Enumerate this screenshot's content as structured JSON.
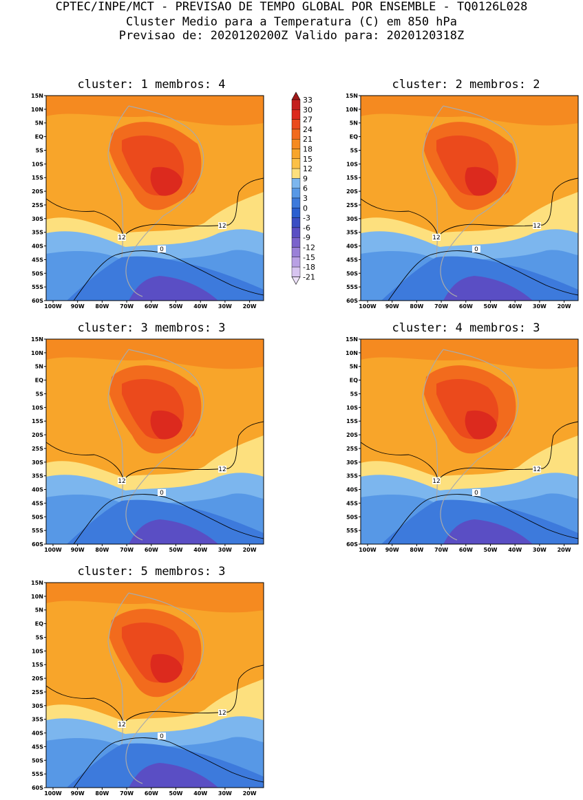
{
  "header": {
    "line1": "CPTEC/INPE/MCT - PREVISAO DE TEMPO GLOBAL POR ENSEMBLE - TQ0126L028",
    "line2": "Cluster Medio para a Temperatura (C) em 850 hPa",
    "line3": "Previsao de: 2020120200Z   Valido para: 2020120318Z"
  },
  "panels": [
    {
      "title": "cluster: 1   membros: 4",
      "contour_labels": [
        "12",
        "12",
        "0"
      ]
    },
    {
      "title": "cluster: 2   membros: 2",
      "contour_labels": [
        "12",
        "12",
        "0"
      ]
    },
    {
      "title": "cluster: 3   membros: 3",
      "contour_labels": [
        "12",
        "12",
        "0"
      ]
    },
    {
      "title": "cluster: 4   membros: 3",
      "contour_labels": [
        "12",
        "12",
        "0"
      ]
    },
    {
      "title": "cluster: 5   membros: 3",
      "contour_labels": [
        "12",
        "12",
        "0"
      ]
    }
  ],
  "lat_labels": [
    "15N",
    "10N",
    "5N",
    "EQ",
    "5S",
    "10S",
    "15S",
    "20S",
    "25S",
    "30S",
    "35S",
    "40S",
    "45S",
    "50S",
    "55S",
    "60S"
  ],
  "lon_labels": [
    "100W",
    "90W",
    "80W",
    "70W",
    "60W",
    "50W",
    "40W",
    "30W",
    "20W"
  ],
  "colorbar": {
    "levels": [
      "33",
      "30",
      "27",
      "24",
      "21",
      "18",
      "15",
      "12",
      "9",
      "6",
      "3",
      "0",
      "-3",
      "-6",
      "-9",
      "-12",
      "-15",
      "-18",
      "-21"
    ],
    "colors": [
      "#a01818",
      "#c41e1e",
      "#dc2a1e",
      "#eb4a1c",
      "#f26b1d",
      "#f58a20",
      "#f8a52a",
      "#fbc046",
      "#fde07e",
      "#7cb6ee",
      "#5798e6",
      "#3d7adc",
      "#2a5fd0",
      "#3a4ec4",
      "#5a4ec4",
      "#7a62cc",
      "#9a80d8",
      "#b9a0e4",
      "#d7c4f0",
      "#ece0f8"
    ]
  },
  "map_colors": {
    "bg": "#f8a52a",
    "warm1": "#f58a20",
    "warm2": "#f26b1d",
    "warm3": "#eb4a1c",
    "hot": "#dc2a1e",
    "yellow": "#fde07e",
    "lblue": "#7cb6ee",
    "blue": "#5798e6",
    "dblue": "#3d7adc",
    "deep": "#2a5fd0",
    "purple": "#5a4ec4",
    "land_line": "#aaaaaa"
  }
}
